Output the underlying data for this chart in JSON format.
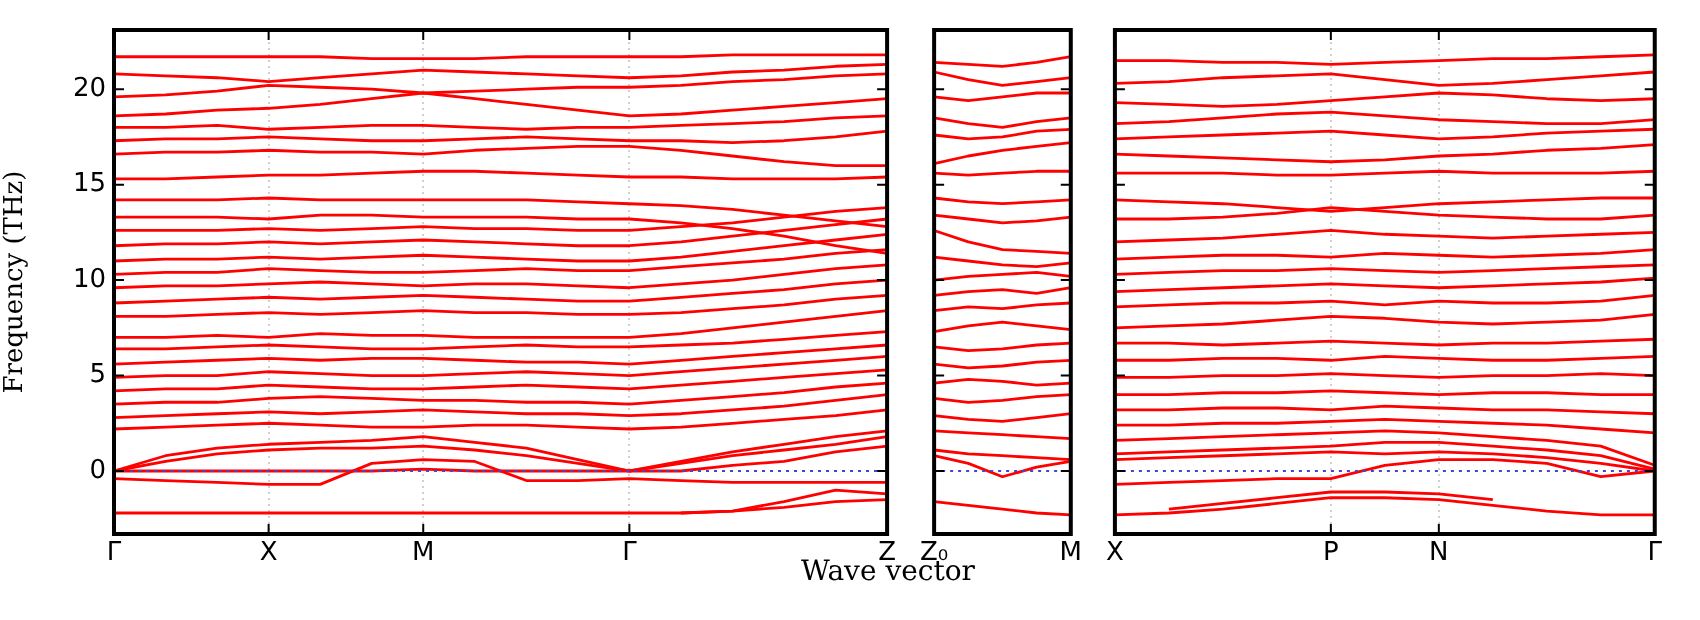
{
  "chart_data": [
    {
      "type": "line",
      "ylabel": "Frequency (THz)",
      "xlabel": "Wave vector",
      "categories": [
        "Γ",
        null,
        null,
        "X",
        null,
        null,
        "M",
        null,
        null,
        null,
        "Γ",
        null,
        null,
        null,
        null,
        "Z"
      ],
      "ylim": [
        -3.3,
        23.1
      ],
      "yticks": [
        0,
        5,
        10,
        15,
        20
      ],
      "grid": "x",
      "marker": "none",
      "line_style": "solid",
      "ref_lines": [
        {
          "axis": "y",
          "value": 0,
          "color": "#4444cc",
          "line_style": "dotted"
        }
      ],
      "series": [
        {
          "color": "#ff0000",
          "values": [
            -2.2,
            -2.2,
            -2.2,
            -2.2,
            -2.2,
            -2.2,
            -2.2,
            -2.2,
            -2.2,
            -2.2,
            -2.2,
            -2.2,
            -2.1,
            -1.6,
            -1.0,
            -1.2
          ]
        },
        {
          "color": "#ff0000",
          "values": [
            null,
            null,
            null,
            null,
            null,
            null,
            null,
            null,
            null,
            null,
            null,
            -2.2,
            -2.1,
            -1.9,
            -1.6,
            -1.5
          ]
        },
        {
          "color": "#ff0000",
          "values": [
            -0.4,
            -0.5,
            -0.6,
            -0.7,
            -0.7,
            0.4,
            0.6,
            0.5,
            -0.5,
            -0.5,
            -0.4,
            -0.5,
            -0.6,
            -0.6,
            -0.6,
            -0.6
          ]
        },
        {
          "color": "#ff0000",
          "values": [
            0,
            0,
            0,
            0,
            0,
            0,
            0.1,
            0,
            0,
            0,
            0,
            0,
            0.3,
            0.5,
            1.0,
            1.3
          ]
        },
        {
          "color": "#ff0000",
          "values": [
            0,
            0.5,
            0.9,
            1.1,
            1.2,
            1.2,
            1.3,
            1.1,
            0.8,
            0.4,
            0,
            0.4,
            0.8,
            1.1,
            1.4,
            1.8
          ]
        },
        {
          "color": "#ff0000",
          "values": [
            0,
            0.8,
            1.2,
            1.4,
            1.5,
            1.6,
            1.8,
            1.5,
            1.2,
            0.6,
            0,
            0.5,
            1.0,
            1.4,
            1.8,
            2.1
          ]
        },
        {
          "color": "#ff0000",
          "values": [
            2.2,
            2.3,
            2.4,
            2.5,
            2.4,
            2.3,
            2.3,
            2.4,
            2.4,
            2.3,
            2.2,
            2.3,
            2.5,
            2.7,
            2.9,
            3.2
          ]
        },
        {
          "color": "#ff0000",
          "values": [
            2.8,
            2.9,
            3.0,
            3.1,
            3.0,
            3.1,
            3.2,
            3.1,
            3.0,
            3.0,
            2.9,
            3.0,
            3.2,
            3.4,
            3.7,
            4.0
          ]
        },
        {
          "color": "#ff0000",
          "values": [
            3.5,
            3.6,
            3.6,
            3.8,
            3.9,
            3.8,
            3.7,
            3.7,
            3.6,
            3.6,
            3.5,
            3.7,
            3.9,
            4.1,
            4.4,
            4.6
          ]
        },
        {
          "color": "#ff0000",
          "values": [
            4.2,
            4.3,
            4.3,
            4.5,
            4.4,
            4.3,
            4.3,
            4.4,
            4.5,
            4.4,
            4.3,
            4.5,
            4.7,
            4.9,
            5.1,
            5.3
          ]
        },
        {
          "color": "#ff0000",
          "values": [
            4.9,
            5.0,
            5.0,
            5.2,
            5.1,
            5.0,
            5.0,
            5.1,
            5.2,
            5.1,
            5.0,
            5.2,
            5.4,
            5.6,
            5.8,
            6.0
          ]
        },
        {
          "color": "#ff0000",
          "values": [
            5.6,
            5.7,
            5.8,
            5.9,
            5.8,
            5.9,
            5.9,
            5.8,
            5.7,
            5.7,
            5.6,
            5.8,
            6.0,
            6.2,
            6.4,
            6.6
          ]
        },
        {
          "color": "#ff0000",
          "values": [
            6.4,
            6.4,
            6.5,
            6.6,
            6.5,
            6.4,
            6.4,
            6.5,
            6.6,
            6.5,
            6.5,
            6.6,
            6.7,
            6.9,
            7.1,
            7.3
          ]
        },
        {
          "color": "#ff0000",
          "values": [
            7.0,
            7.0,
            7.1,
            7.0,
            7.2,
            7.1,
            7.1,
            7.0,
            7.0,
            7.0,
            7.0,
            7.2,
            7.5,
            7.8,
            8.1,
            8.4
          ]
        },
        {
          "color": "#ff0000",
          "values": [
            8.1,
            8.1,
            8.2,
            8.3,
            8.2,
            8.3,
            8.4,
            8.3,
            8.3,
            8.2,
            8.2,
            8.3,
            8.5,
            8.7,
            9.0,
            9.2
          ]
        },
        {
          "color": "#ff0000",
          "values": [
            8.8,
            8.9,
            9.0,
            9.1,
            9.0,
            9.1,
            9.2,
            9.1,
            9.0,
            8.9,
            8.9,
            9.1,
            9.3,
            9.5,
            9.8,
            10.0
          ]
        },
        {
          "color": "#ff0000",
          "values": [
            9.6,
            9.7,
            9.7,
            9.8,
            9.9,
            9.8,
            9.7,
            9.8,
            9.8,
            9.7,
            9.6,
            9.8,
            10.0,
            10.3,
            10.6,
            10.8
          ]
        },
        {
          "color": "#ff0000",
          "values": [
            10.3,
            10.4,
            10.4,
            10.6,
            10.5,
            10.4,
            10.4,
            10.5,
            10.6,
            10.5,
            10.5,
            10.7,
            10.9,
            11.1,
            11.4,
            11.6
          ]
        },
        {
          "color": "#ff0000",
          "values": [
            11.0,
            11.1,
            11.1,
            11.2,
            11.1,
            11.2,
            11.3,
            11.2,
            11.1,
            11.0,
            11.0,
            11.2,
            11.5,
            11.8,
            12.1,
            12.4
          ]
        },
        {
          "color": "#ff0000",
          "values": [
            11.8,
            11.9,
            11.9,
            12.0,
            11.9,
            12.0,
            12.1,
            12.0,
            11.9,
            11.8,
            11.8,
            12.0,
            12.3,
            12.6,
            12.9,
            13.2
          ]
        },
        {
          "color": "#ff0000",
          "values": [
            12.6,
            12.6,
            12.6,
            12.7,
            12.6,
            12.7,
            12.8,
            12.7,
            12.7,
            12.6,
            12.6,
            12.8,
            13.0,
            13.3,
            13.6,
            13.8
          ]
        },
        {
          "color": "#ff0000",
          "values": [
            13.3,
            13.3,
            13.3,
            13.2,
            13.4,
            13.4,
            13.3,
            13.3,
            13.3,
            13.2,
            13.2,
            13.0,
            12.7,
            12.3,
            11.8,
            11.4
          ]
        },
        {
          "color": "#ff0000",
          "values": [
            14.2,
            14.2,
            14.2,
            14.3,
            14.2,
            14.2,
            14.2,
            14.2,
            14.2,
            14.1,
            14.0,
            13.9,
            13.7,
            13.4,
            13.1,
            12.8
          ]
        },
        {
          "color": "#ff0000",
          "values": [
            15.3,
            15.3,
            15.4,
            15.5,
            15.5,
            15.6,
            15.7,
            15.7,
            15.6,
            15.5,
            15.4,
            15.4,
            15.3,
            15.3,
            15.3,
            15.4
          ]
        },
        {
          "color": "#ff0000",
          "values": [
            16.6,
            16.7,
            16.7,
            16.8,
            16.7,
            16.7,
            16.6,
            16.8,
            16.9,
            17.0,
            17.0,
            16.8,
            16.5,
            16.2,
            16.0,
            16.0
          ]
        },
        {
          "color": "#ff0000",
          "values": [
            17.3,
            17.4,
            17.4,
            17.5,
            17.4,
            17.3,
            17.3,
            17.4,
            17.5,
            17.4,
            17.3,
            17.3,
            17.2,
            17.3,
            17.5,
            17.8
          ]
        },
        {
          "color": "#ff0000",
          "values": [
            18.0,
            18.0,
            18.1,
            17.9,
            18.0,
            18.1,
            18.1,
            18.0,
            17.9,
            18.0,
            18.0,
            18.1,
            18.2,
            18.3,
            18.5,
            18.6
          ]
        },
        {
          "color": "#ff0000",
          "values": [
            18.6,
            18.7,
            18.9,
            19.0,
            19.2,
            19.5,
            19.8,
            19.5,
            19.2,
            18.9,
            18.6,
            18.7,
            18.9,
            19.1,
            19.3,
            19.5
          ]
        },
        {
          "color": "#ff0000",
          "values": [
            19.6,
            19.7,
            19.9,
            20.2,
            20.1,
            20.0,
            19.8,
            19.9,
            20.0,
            20.1,
            20.1,
            20.2,
            20.4,
            20.5,
            20.7,
            20.8
          ]
        },
        {
          "color": "#ff0000",
          "values": [
            20.8,
            20.7,
            20.6,
            20.4,
            20.6,
            20.8,
            21.0,
            20.9,
            20.8,
            20.7,
            20.6,
            20.7,
            20.9,
            21.0,
            21.2,
            21.3
          ]
        },
        {
          "color": "#ff0000",
          "values": [
            21.7,
            21.7,
            21.7,
            21.7,
            21.7,
            21.6,
            21.6,
            21.6,
            21.7,
            21.7,
            21.7,
            21.7,
            21.8,
            21.8,
            21.8,
            21.8
          ]
        }
      ]
    },
    {
      "type": "line",
      "categories": [
        "Z₀",
        null,
        null,
        null,
        "M"
      ],
      "ylim": [
        -3.3,
        23.1
      ],
      "yticks": [
        0,
        5,
        10,
        15,
        20
      ],
      "tick_labels": "x",
      "marker": "none",
      "line_style": "solid",
      "ref_lines": [
        {
          "axis": "y",
          "value": 0,
          "color": "#4444cc",
          "line_style": "dotted"
        }
      ],
      "series": [
        {
          "color": "#ff0000",
          "values": [
            -1.6,
            -1.8,
            -2.0,
            -2.2,
            -2.3
          ]
        },
        {
          "color": "#ff0000",
          "values": [
            0.8,
            0.4,
            -0.3,
            0.2,
            0.5
          ]
        },
        {
          "color": "#ff0000",
          "values": [
            1.1,
            0.9,
            0.8,
            0.7,
            0.6
          ]
        },
        {
          "color": "#ff0000",
          "values": [
            2.1,
            2.0,
            1.9,
            1.8,
            1.7
          ]
        },
        {
          "color": "#ff0000",
          "values": [
            2.9,
            2.7,
            2.6,
            2.8,
            3.0
          ]
        },
        {
          "color": "#ff0000",
          "values": [
            3.8,
            3.6,
            3.7,
            3.9,
            4.0
          ]
        },
        {
          "color": "#ff0000",
          "values": [
            4.6,
            4.8,
            4.7,
            4.5,
            4.6
          ]
        },
        {
          "color": "#ff0000",
          "values": [
            5.6,
            5.4,
            5.5,
            5.7,
            5.8
          ]
        },
        {
          "color": "#ff0000",
          "values": [
            6.5,
            6.3,
            6.4,
            6.6,
            6.7
          ]
        },
        {
          "color": "#ff0000",
          "values": [
            7.3,
            7.6,
            7.8,
            7.6,
            7.4
          ]
        },
        {
          "color": "#ff0000",
          "values": [
            8.4,
            8.6,
            8.5,
            8.7,
            8.8
          ]
        },
        {
          "color": "#ff0000",
          "values": [
            9.2,
            9.4,
            9.5,
            9.3,
            9.6
          ]
        },
        {
          "color": "#ff0000",
          "values": [
            10.0,
            10.2,
            10.3,
            10.4,
            10.2
          ]
        },
        {
          "color": "#ff0000",
          "values": [
            11.2,
            11.0,
            10.8,
            10.7,
            10.9
          ]
        },
        {
          "color": "#ff0000",
          "values": [
            12.6,
            12.0,
            11.6,
            11.5,
            11.4
          ]
        },
        {
          "color": "#ff0000",
          "values": [
            13.4,
            13.2,
            13.0,
            13.1,
            13.3
          ]
        },
        {
          "color": "#ff0000",
          "values": [
            14.3,
            14.1,
            14.0,
            14.1,
            14.2
          ]
        },
        {
          "color": "#ff0000",
          "values": [
            15.6,
            15.5,
            15.6,
            15.7,
            15.7
          ]
        },
        {
          "color": "#ff0000",
          "values": [
            16.1,
            16.5,
            16.8,
            17.0,
            17.2
          ]
        },
        {
          "color": "#ff0000",
          "values": [
            17.6,
            17.4,
            17.5,
            17.8,
            17.9
          ]
        },
        {
          "color": "#ff0000",
          "values": [
            18.5,
            18.2,
            18.0,
            18.3,
            18.5
          ]
        },
        {
          "color": "#ff0000",
          "values": [
            19.6,
            19.4,
            19.6,
            19.8,
            19.8
          ]
        },
        {
          "color": "#ff0000",
          "values": [
            20.9,
            20.5,
            20.2,
            20.4,
            20.6
          ]
        },
        {
          "color": "#ff0000",
          "values": [
            21.4,
            21.3,
            21.2,
            21.4,
            21.7
          ]
        }
      ]
    },
    {
      "type": "line",
      "categories": [
        "X",
        null,
        null,
        null,
        "P",
        null,
        "N",
        null,
        null,
        null,
        "Γ"
      ],
      "ylim": [
        -3.3,
        23.1
      ],
      "yticks": [
        0,
        5,
        10,
        15,
        20
      ],
      "tick_labels": "x",
      "grid": "x",
      "marker": "none",
      "line_style": "solid",
      "ref_lines": [
        {
          "axis": "y",
          "value": 0,
          "color": "#4444cc",
          "line_style": "dotted"
        }
      ],
      "series": [
        {
          "color": "#ff0000",
          "values": [
            -2.3,
            -2.2,
            -2.0,
            -1.7,
            -1.4,
            -1.4,
            -1.5,
            -1.8,
            -2.1,
            -2.3,
            -2.3
          ]
        },
        {
          "color": "#ff0000",
          "values": [
            null,
            -2.0,
            -1.7,
            -1.4,
            -1.1,
            -1.1,
            -1.2,
            -1.5,
            null,
            null,
            null
          ]
        },
        {
          "color": "#ff0000",
          "values": [
            -0.7,
            -0.6,
            -0.5,
            -0.4,
            -0.4,
            0.3,
            0.6,
            0.6,
            0.4,
            -0.3,
            0
          ]
        },
        {
          "color": "#ff0000",
          "values": [
            0.6,
            0.7,
            0.8,
            0.9,
            1.0,
            0.9,
            1.0,
            0.9,
            0.7,
            0.4,
            0
          ]
        },
        {
          "color": "#ff0000",
          "values": [
            0.9,
            1.0,
            1.1,
            1.2,
            1.3,
            1.5,
            1.5,
            1.3,
            1.1,
            0.8,
            0.1
          ]
        },
        {
          "color": "#ff0000",
          "values": [
            1.6,
            1.7,
            1.8,
            1.9,
            2.0,
            2.1,
            2.0,
            1.8,
            1.6,
            1.3,
            0.3
          ]
        },
        {
          "color": "#ff0000",
          "values": [
            2.4,
            2.4,
            2.5,
            2.5,
            2.6,
            2.7,
            2.6,
            2.5,
            2.4,
            2.2,
            2.0
          ]
        },
        {
          "color": "#ff0000",
          "values": [
            3.2,
            3.2,
            3.3,
            3.3,
            3.2,
            3.4,
            3.3,
            3.2,
            3.2,
            3.1,
            3.0
          ]
        },
        {
          "color": "#ff0000",
          "values": [
            4.0,
            4.0,
            4.1,
            4.1,
            4.2,
            4.1,
            4.0,
            4.1,
            4.1,
            4.0,
            4.0
          ]
        },
        {
          "color": "#ff0000",
          "values": [
            4.9,
            4.9,
            5.0,
            5.0,
            5.1,
            5.0,
            4.9,
            5.0,
            5.0,
            5.1,
            5.0
          ]
        },
        {
          "color": "#ff0000",
          "values": [
            5.8,
            5.8,
            5.9,
            5.9,
            5.8,
            6.0,
            5.9,
            5.8,
            5.8,
            5.9,
            6.0
          ]
        },
        {
          "color": "#ff0000",
          "values": [
            6.7,
            6.7,
            6.6,
            6.7,
            6.8,
            6.7,
            6.6,
            6.7,
            6.7,
            6.8,
            6.9
          ]
        },
        {
          "color": "#ff0000",
          "values": [
            7.5,
            7.6,
            7.7,
            7.9,
            8.1,
            8.0,
            7.8,
            7.7,
            7.8,
            7.9,
            8.2
          ]
        },
        {
          "color": "#ff0000",
          "values": [
            8.6,
            8.7,
            8.8,
            8.8,
            8.9,
            8.7,
            8.9,
            8.8,
            8.8,
            8.9,
            9.2
          ]
        },
        {
          "color": "#ff0000",
          "values": [
            9.4,
            9.5,
            9.6,
            9.7,
            9.8,
            9.7,
            9.6,
            9.7,
            9.8,
            9.9,
            10.1
          ]
        },
        {
          "color": "#ff0000",
          "values": [
            10.3,
            10.4,
            10.5,
            10.5,
            10.6,
            10.5,
            10.4,
            10.5,
            10.6,
            10.7,
            10.8
          ]
        },
        {
          "color": "#ff0000",
          "values": [
            11.1,
            11.2,
            11.3,
            11.3,
            11.2,
            11.4,
            11.3,
            11.2,
            11.3,
            11.4,
            11.6
          ]
        },
        {
          "color": "#ff0000",
          "values": [
            12.0,
            12.1,
            12.2,
            12.4,
            12.6,
            12.4,
            12.3,
            12.2,
            12.3,
            12.4,
            12.5
          ]
        },
        {
          "color": "#ff0000",
          "values": [
            13.2,
            13.2,
            13.3,
            13.5,
            13.8,
            13.6,
            13.4,
            13.3,
            13.2,
            13.2,
            13.4
          ]
        },
        {
          "color": "#ff0000",
          "values": [
            14.2,
            14.1,
            14.0,
            13.8,
            13.6,
            13.8,
            14.0,
            14.1,
            14.2,
            14.3,
            14.3
          ]
        },
        {
          "color": "#ff0000",
          "values": [
            15.6,
            15.6,
            15.6,
            15.5,
            15.5,
            15.6,
            15.7,
            15.6,
            15.6,
            15.6,
            15.7
          ]
        },
        {
          "color": "#ff0000",
          "values": [
            16.6,
            16.5,
            16.4,
            16.3,
            16.2,
            16.3,
            16.5,
            16.6,
            16.8,
            16.9,
            17.1
          ]
        },
        {
          "color": "#ff0000",
          "values": [
            17.4,
            17.5,
            17.6,
            17.7,
            17.8,
            17.6,
            17.4,
            17.5,
            17.7,
            17.8,
            17.9
          ]
        },
        {
          "color": "#ff0000",
          "values": [
            18.2,
            18.3,
            18.5,
            18.7,
            18.8,
            18.6,
            18.4,
            18.3,
            18.2,
            18.2,
            18.4
          ]
        },
        {
          "color": "#ff0000",
          "values": [
            19.3,
            19.2,
            19.1,
            19.2,
            19.4,
            19.6,
            19.8,
            19.7,
            19.5,
            19.4,
            19.5
          ]
        },
        {
          "color": "#ff0000",
          "values": [
            20.3,
            20.4,
            20.6,
            20.7,
            20.8,
            20.5,
            20.2,
            20.3,
            20.5,
            20.7,
            20.9
          ]
        },
        {
          "color": "#ff0000",
          "values": [
            21.5,
            21.5,
            21.4,
            21.4,
            21.3,
            21.4,
            21.5,
            21.6,
            21.6,
            21.7,
            21.8
          ]
        }
      ]
    }
  ]
}
